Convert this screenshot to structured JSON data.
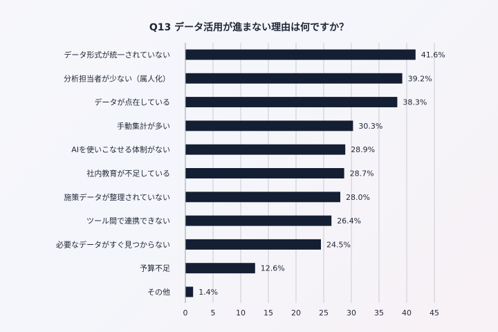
{
  "chart_data": {
    "type": "bar",
    "orientation": "horizontal",
    "title": "Q13 データ活用が進まない理由は何ですか？",
    "categories": [
      "データ形式が統一されていない",
      "分析担当者が少ない（属人化）",
      "データが点在している",
      "手動集計が多い",
      "AIを使いこなせる体制がない",
      "社内教育が不足している",
      "施策データが整理されていない",
      "ツール間で連携できない",
      "必要なデータがすぐ見つからない",
      "予算不足",
      "その他"
    ],
    "values": [
      41.6,
      39.2,
      38.3,
      30.3,
      28.9,
      28.7,
      28.0,
      26.4,
      24.5,
      12.6,
      1.4
    ],
    "value_labels": [
      "41.6%",
      "39.2%",
      "38.3%",
      "30.3%",
      "28.9%",
      "28.7%",
      "28.0%",
      "26.4%",
      "24.5%",
      "12.6%",
      "1.4%"
    ],
    "xlim": [
      0,
      45
    ],
    "x_ticks": [
      "0",
      "5",
      "10",
      "15",
      "20",
      "25",
      "30",
      "35",
      "40",
      "45"
    ],
    "grid": true,
    "bar_color": "#141f33"
  }
}
